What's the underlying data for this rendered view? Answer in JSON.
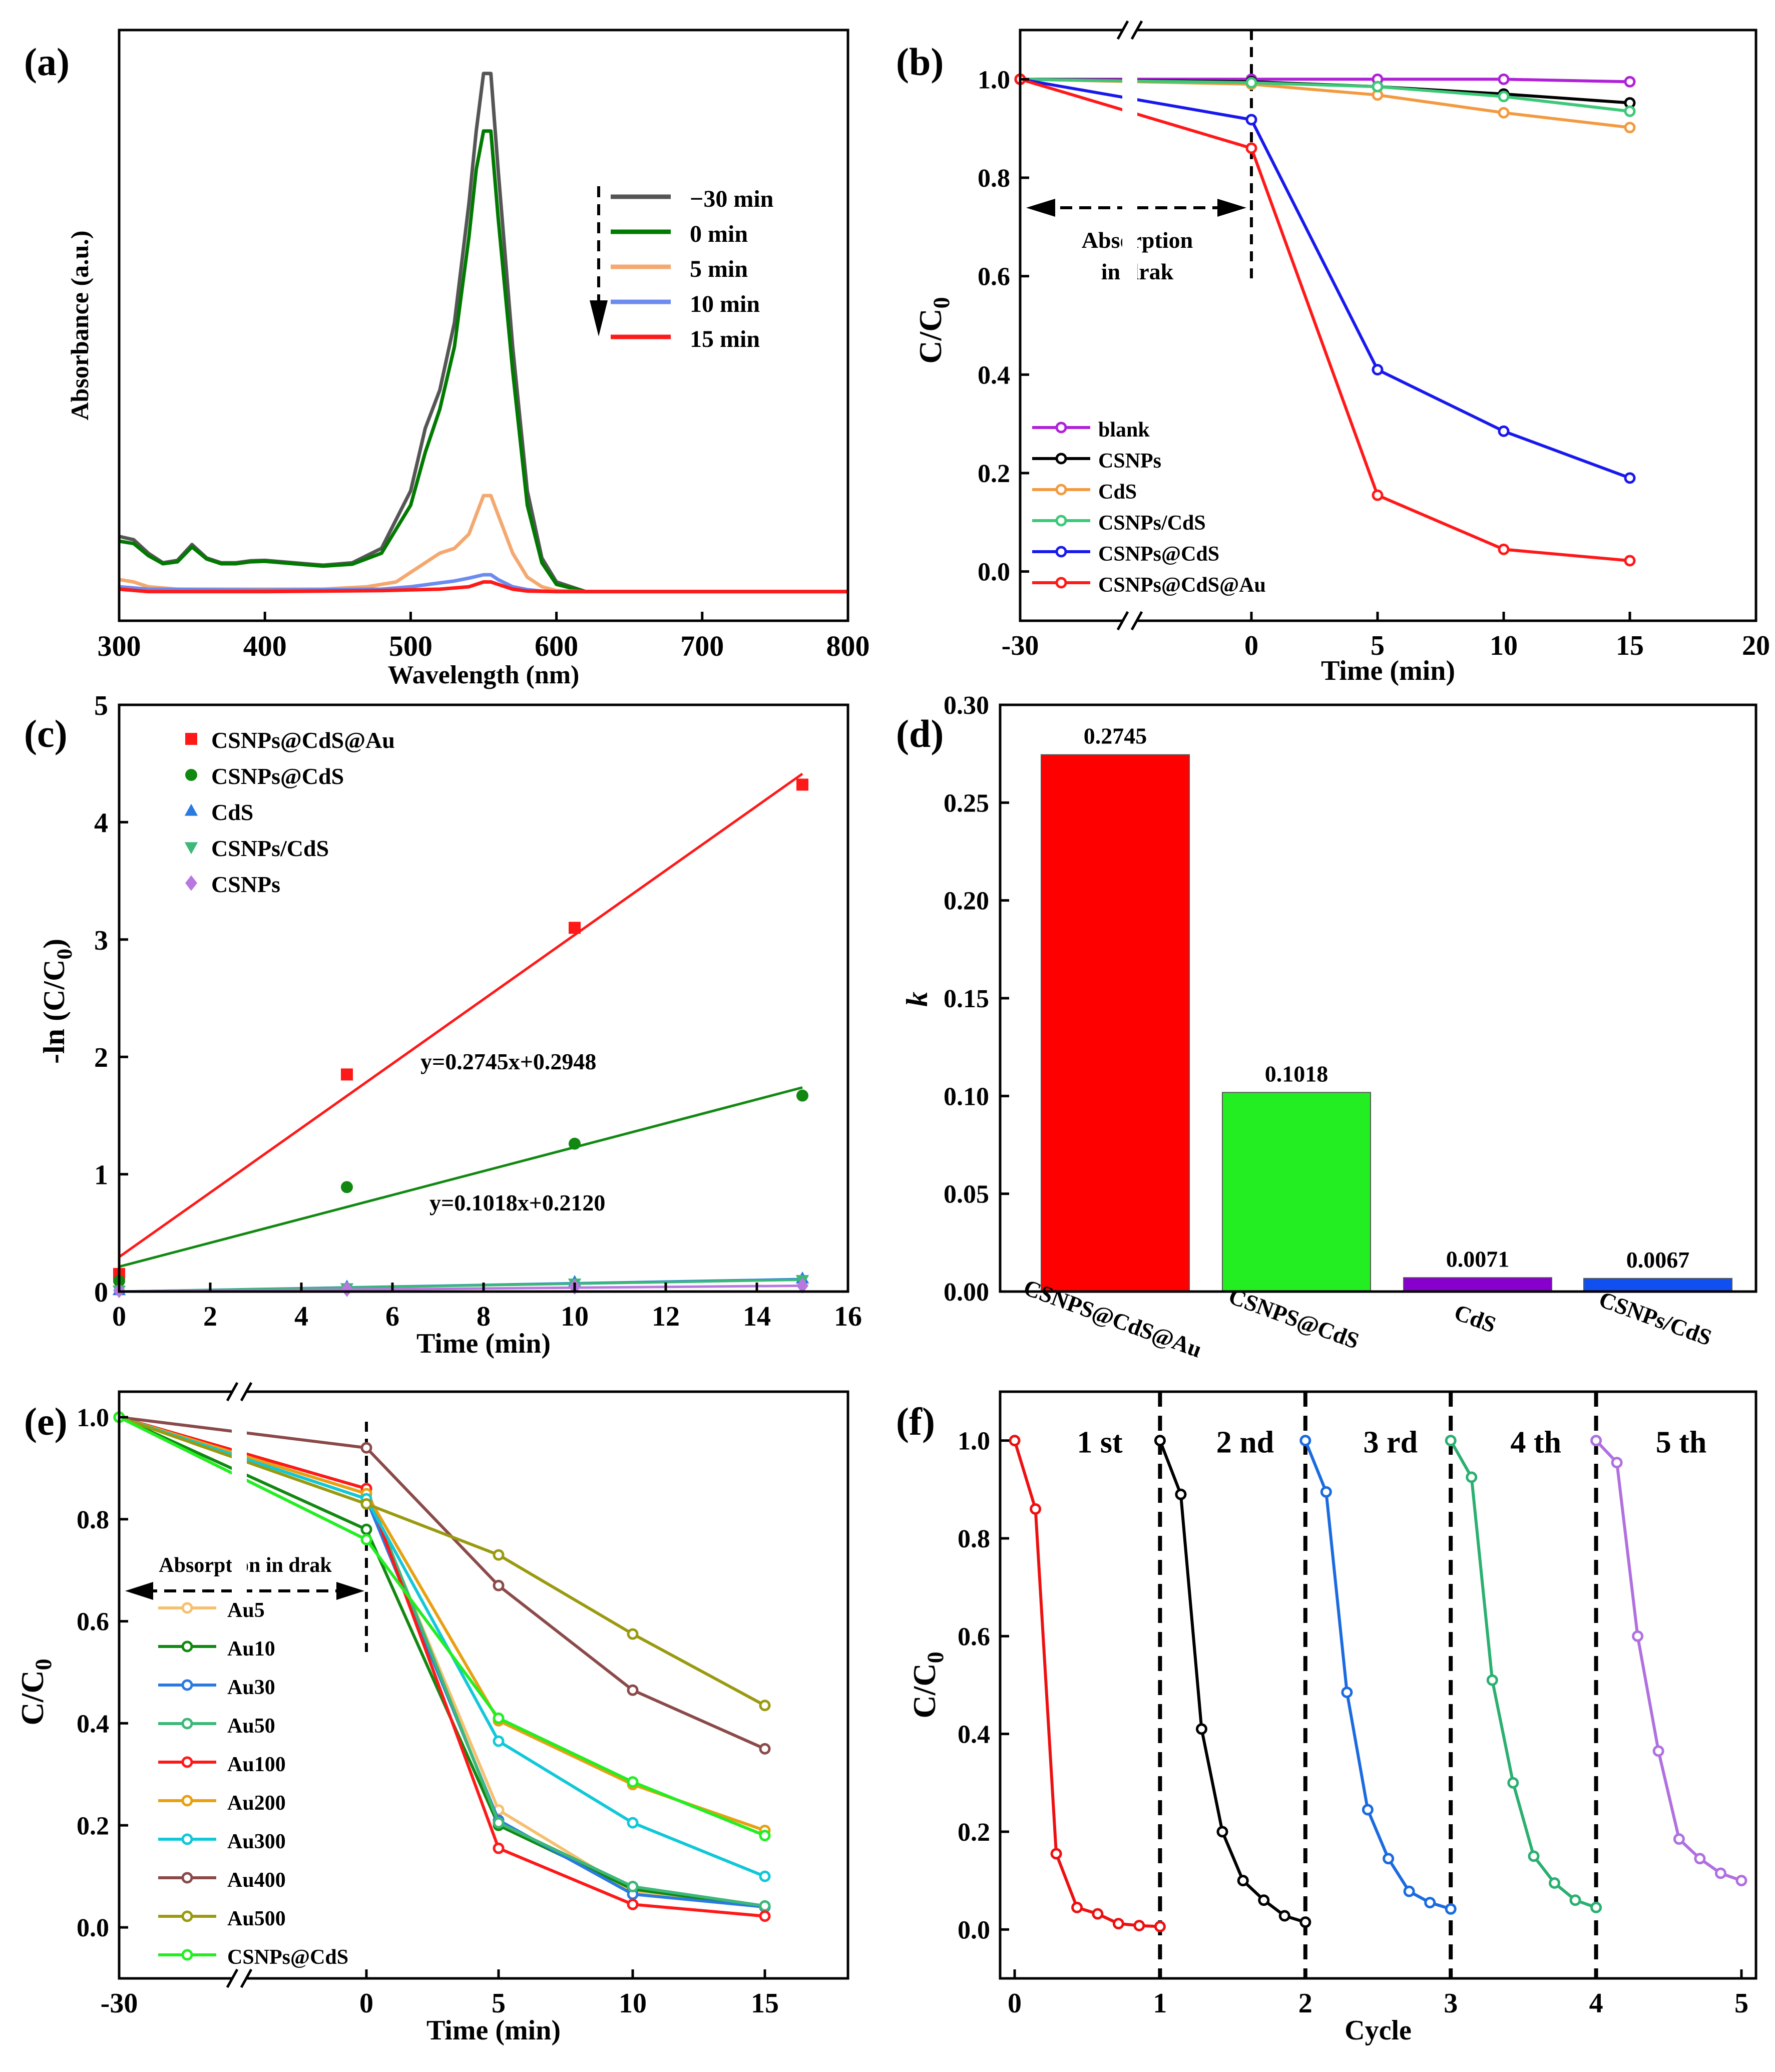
{
  "chart_data": [
    {
      "panel": "(a)",
      "type": "line",
      "xlabel": "Wavelength (nm)",
      "ylabel": "Absorbance (a.u.)",
      "xlim": [
        300,
        800
      ],
      "xticks": [
        300,
        400,
        500,
        600,
        700,
        800
      ],
      "yticks_shown": false,
      "legend_arrow": "down",
      "series": [
        {
          "name": "−30 min",
          "color": "#555555",
          "x": [
            300,
            310,
            320,
            330,
            340,
            350,
            360,
            370,
            380,
            390,
            400,
            420,
            440,
            460,
            480,
            500,
            510,
            520,
            530,
            540,
            545,
            550,
            555,
            560,
            570,
            580,
            590,
            600,
            620,
            700,
            800
          ],
          "y": [
            0.155,
            0.148,
            0.12,
            0.1,
            0.105,
            0.138,
            0.11,
            0.1,
            0.1,
            0.104,
            0.105,
            0.1,
            0.095,
            0.1,
            0.13,
            0.25,
            0.38,
            0.46,
            0.6,
            0.85,
            1.0,
            1.12,
            1.12,
            0.92,
            0.55,
            0.25,
            0.11,
            0.06,
            0.04,
            0.04,
            0.04
          ]
        },
        {
          "name": "0 min",
          "color": "#007a00",
          "x": [
            300,
            310,
            320,
            330,
            340,
            350,
            360,
            370,
            380,
            390,
            400,
            420,
            440,
            460,
            480,
            500,
            510,
            520,
            530,
            540,
            545,
            550,
            555,
            560,
            570,
            580,
            590,
            600,
            620,
            700,
            800
          ],
          "y": [
            0.145,
            0.14,
            0.115,
            0.098,
            0.102,
            0.133,
            0.108,
            0.098,
            0.098,
            0.102,
            0.103,
            0.098,
            0.093,
            0.097,
            0.12,
            0.22,
            0.33,
            0.42,
            0.55,
            0.78,
            0.92,
            1.0,
            1.0,
            0.82,
            0.5,
            0.22,
            0.1,
            0.055,
            0.04,
            0.04,
            0.04
          ]
        },
        {
          "name": "5 min",
          "color": "#f4a870",
          "x": [
            300,
            310,
            320,
            340,
            360,
            400,
            440,
            470,
            490,
            500,
            510,
            520,
            530,
            540,
            545,
            550,
            555,
            560,
            570,
            580,
            590,
            600,
            620,
            700,
            800
          ],
          "y": [
            0.065,
            0.06,
            0.05,
            0.045,
            0.045,
            0.045,
            0.045,
            0.05,
            0.06,
            0.08,
            0.1,
            0.12,
            0.13,
            0.16,
            0.2,
            0.24,
            0.24,
            0.2,
            0.12,
            0.07,
            0.05,
            0.042,
            0.04,
            0.04,
            0.04
          ]
        },
        {
          "name": "10 min",
          "color": "#6b8bf0",
          "x": [
            300,
            320,
            400,
            480,
            500,
            520,
            530,
            540,
            550,
            555,
            560,
            570,
            580,
            590,
            600,
            700,
            800
          ],
          "y": [
            0.05,
            0.045,
            0.043,
            0.045,
            0.05,
            0.058,
            0.062,
            0.068,
            0.075,
            0.075,
            0.065,
            0.05,
            0.044,
            0.041,
            0.04,
            0.04,
            0.04
          ]
        },
        {
          "name": "15 min",
          "color": "#ff1a1a",
          "x": [
            300,
            320,
            400,
            480,
            520,
            540,
            550,
            555,
            560,
            570,
            580,
            600,
            700,
            800
          ],
          "y": [
            0.045,
            0.04,
            0.04,
            0.042,
            0.045,
            0.05,
            0.06,
            0.06,
            0.055,
            0.045,
            0.041,
            0.04,
            0.04,
            0.04
          ]
        }
      ]
    },
    {
      "panel": "(b)",
      "type": "line",
      "xlabel": "Time (min)",
      "ylabel": "C/C0",
      "xticks": [
        "-30",
        "0",
        "5",
        "10",
        "15",
        "20"
      ],
      "ylim": [
        -0.1,
        1.1
      ],
      "yticks": [
        0.0,
        0.2,
        0.4,
        0.6,
        0.8,
        1.0
      ],
      "annotation": [
        "Absorption",
        "in drak"
      ],
      "x": [
        -30,
        0,
        5,
        10,
        15
      ],
      "series": [
        {
          "name": "blank",
          "color": "#b020d8",
          "values": [
            1.0,
            1.0,
            1.0,
            1.0,
            0.995
          ]
        },
        {
          "name": "CSNPs",
          "color": "#000000",
          "values": [
            1.0,
            0.995,
            0.985,
            0.97,
            0.952
          ]
        },
        {
          "name": "CdS",
          "color": "#f39a40",
          "values": [
            1.0,
            0.99,
            0.968,
            0.932,
            0.902
          ]
        },
        {
          "name": "CSNPs/CdS",
          "color": "#3cc878",
          "values": [
            1.0,
            0.993,
            0.985,
            0.965,
            0.935
          ]
        },
        {
          "name": "CSNPs@CdS",
          "color": "#1818ee",
          "values": [
            1.0,
            0.918,
            0.41,
            0.285,
            0.19
          ]
        },
        {
          "name": "CSNPs@CdS@Au",
          "color": "#ff1818",
          "values": [
            1.0,
            0.86,
            0.155,
            0.045,
            0.022
          ]
        }
      ]
    },
    {
      "panel": "(c)",
      "type": "scatter",
      "xlabel": "Time (min)",
      "ylabel": "-ln (C/C0)",
      "xlim": [
        0,
        16
      ],
      "ylim": [
        0,
        5
      ],
      "xticks": [
        0,
        2,
        4,
        6,
        8,
        10,
        12,
        14,
        16
      ],
      "yticks": [
        0,
        1,
        2,
        3,
        4,
        5
      ],
      "fit_labels": [
        "y=0.2745x+0.2948",
        "y=0.1018x+0.2120"
      ],
      "series": [
        {
          "name": "CSNPs@CdS@Au",
          "color": "#ff1818",
          "marker": "square",
          "x": [
            0,
            5,
            10,
            15
          ],
          "values": [
            0.15,
            1.85,
            3.1,
            4.32
          ],
          "fit": {
            "slope": 0.2745,
            "intercept": 0.2948
          }
        },
        {
          "name": "CSNPs@CdS",
          "color": "#118811",
          "marker": "circle",
          "x": [
            0,
            5,
            10,
            15
          ],
          "values": [
            0.09,
            0.89,
            1.26,
            1.67
          ],
          "fit": {
            "slope": 0.1018,
            "intercept": 0.212
          }
        },
        {
          "name": "CdS",
          "color": "#2a7ae0",
          "marker": "triangle-up",
          "x": [
            0,
            5,
            10,
            15
          ],
          "values": [
            0.01,
            0.04,
            0.08,
            0.11
          ],
          "fit": {
            "slope": 0.0071,
            "intercept": 0.0
          }
        },
        {
          "name": "CSNPs/CdS",
          "color": "#3cb878",
          "marker": "triangle-down",
          "x": [
            0,
            5,
            10,
            15
          ],
          "values": [
            0.01,
            0.03,
            0.07,
            0.1
          ],
          "fit": {
            "slope": 0.0067,
            "intercept": 0.0
          }
        },
        {
          "name": "CSNPs",
          "color": "#b878e0",
          "marker": "diamond",
          "x": [
            0,
            5,
            10,
            15
          ],
          "values": [
            0.01,
            0.02,
            0.04,
            0.05
          ],
          "fit": {
            "slope": 0.0033,
            "intercept": 0.0
          }
        }
      ]
    },
    {
      "panel": "(d)",
      "type": "bar",
      "ylabel": "k",
      "ylim": [
        0,
        0.3
      ],
      "yticks": [
        0.0,
        0.05,
        0.1,
        0.15,
        0.2,
        0.25,
        0.3
      ],
      "ytick_labels": [
        "0.00",
        "0.05",
        "0.10",
        "0.15",
        "0.20",
        "0.25",
        "0.30"
      ],
      "categories": [
        "CSNPS@CdS@Au",
        "CSNPS@CdS",
        "CdS",
        "CSNPs/CdS"
      ],
      "values": [
        0.2745,
        0.1018,
        0.0071,
        0.0067
      ],
      "value_labels": [
        "0.2745",
        "0.1018",
        "0.0071",
        "0.0067"
      ],
      "colors": [
        "#ff0000",
        "#22ee22",
        "#8800cc",
        "#1050f0"
      ]
    },
    {
      "panel": "(e)",
      "type": "line",
      "xlabel": "Time (min)",
      "ylabel": "C/C0",
      "xticks": [
        "-30",
        "0",
        "5",
        "10",
        "15"
      ],
      "ylim": [
        -0.1,
        1.05
      ],
      "yticks": [
        0.0,
        0.2,
        0.4,
        0.6,
        0.8,
        1.0
      ],
      "annotation": "Absorption in drak",
      "x": [
        -30,
        0,
        5,
        10,
        15
      ],
      "series": [
        {
          "name": "Au5",
          "color": "#f5c070",
          "values": [
            1.0,
            0.85,
            0.23,
            0.07,
            0.04
          ]
        },
        {
          "name": "Au10",
          "color": "#118811",
          "values": [
            1.0,
            0.78,
            0.2,
            0.075,
            0.04
          ]
        },
        {
          "name": "Au30",
          "color": "#2a7ae0",
          "values": [
            1.0,
            0.84,
            0.21,
            0.065,
            0.04
          ]
        },
        {
          "name": "Au50",
          "color": "#3cb878",
          "values": [
            1.0,
            0.86,
            0.205,
            0.08,
            0.042
          ]
        },
        {
          "name": "Au100",
          "color": "#ff1818",
          "values": [
            1.0,
            0.86,
            0.155,
            0.045,
            0.022
          ]
        },
        {
          "name": "Au200",
          "color": "#e8a010",
          "values": [
            1.0,
            0.85,
            0.405,
            0.28,
            0.19
          ]
        },
        {
          "name": "Au300",
          "color": "#10c8d8",
          "values": [
            1.0,
            0.84,
            0.365,
            0.205,
            0.1
          ]
        },
        {
          "name": "Au400",
          "color": "#8b4a4a",
          "values": [
            1.0,
            0.94,
            0.67,
            0.465,
            0.35
          ]
        },
        {
          "name": "Au500",
          "color": "#9a9a10",
          "values": [
            1.0,
            0.83,
            0.73,
            0.575,
            0.435
          ]
        },
        {
          "name": "CSNPs@CdS",
          "color": "#22ee22",
          "values": [
            1.0,
            0.76,
            0.41,
            0.285,
            0.18
          ]
        }
      ]
    },
    {
      "panel": "(f)",
      "type": "line",
      "xlabel": "Cycle",
      "ylabel": "C/C0",
      "xlim": [
        -0.1,
        5.1
      ],
      "ylim": [
        -0.1,
        1.1
      ],
      "xticks": [
        0,
        1,
        2,
        3,
        4,
        5
      ],
      "yticks": [
        0.0,
        0.2,
        0.4,
        0.6,
        0.8,
        1.0
      ],
      "cycle_labels": [
        "1 st",
        "2 nd",
        "3 rd",
        "4 th",
        "5 th"
      ],
      "series": [
        {
          "name": "1 st",
          "color": "#ee1010",
          "x": [
            0,
            0.143,
            0.286,
            0.429,
            0.571,
            0.714,
            0.857,
            1.0
          ],
          "values": [
            1.0,
            0.86,
            0.155,
            0.045,
            0.032,
            0.012,
            0.008,
            0.006
          ]
        },
        {
          "name": "2 nd",
          "color": "#000000",
          "x": [
            1.0,
            1.143,
            1.286,
            1.429,
            1.571,
            1.714,
            1.857,
            2.0
          ],
          "values": [
            1.0,
            0.89,
            0.41,
            0.2,
            0.1,
            0.06,
            0.028,
            0.015
          ]
        },
        {
          "name": "3 rd",
          "color": "#1a6ae0",
          "x": [
            2.0,
            2.143,
            2.286,
            2.429,
            2.571,
            2.714,
            2.857,
            3.0
          ],
          "values": [
            1.0,
            0.895,
            0.485,
            0.245,
            0.145,
            0.078,
            0.055,
            0.042
          ]
        },
        {
          "name": "4 th",
          "color": "#2ab070",
          "x": [
            3.0,
            3.143,
            3.286,
            3.429,
            3.571,
            3.714,
            3.857,
            4.0
          ],
          "values": [
            1.0,
            0.925,
            0.51,
            0.3,
            0.15,
            0.095,
            0.06,
            0.045
          ]
        },
        {
          "name": "5 th",
          "color": "#b070e0",
          "x": [
            4.0,
            4.143,
            4.286,
            4.429,
            4.571,
            4.714,
            4.857,
            5.0
          ],
          "values": [
            1.0,
            0.955,
            0.6,
            0.365,
            0.185,
            0.145,
            0.115,
            0.1
          ]
        }
      ]
    }
  ]
}
